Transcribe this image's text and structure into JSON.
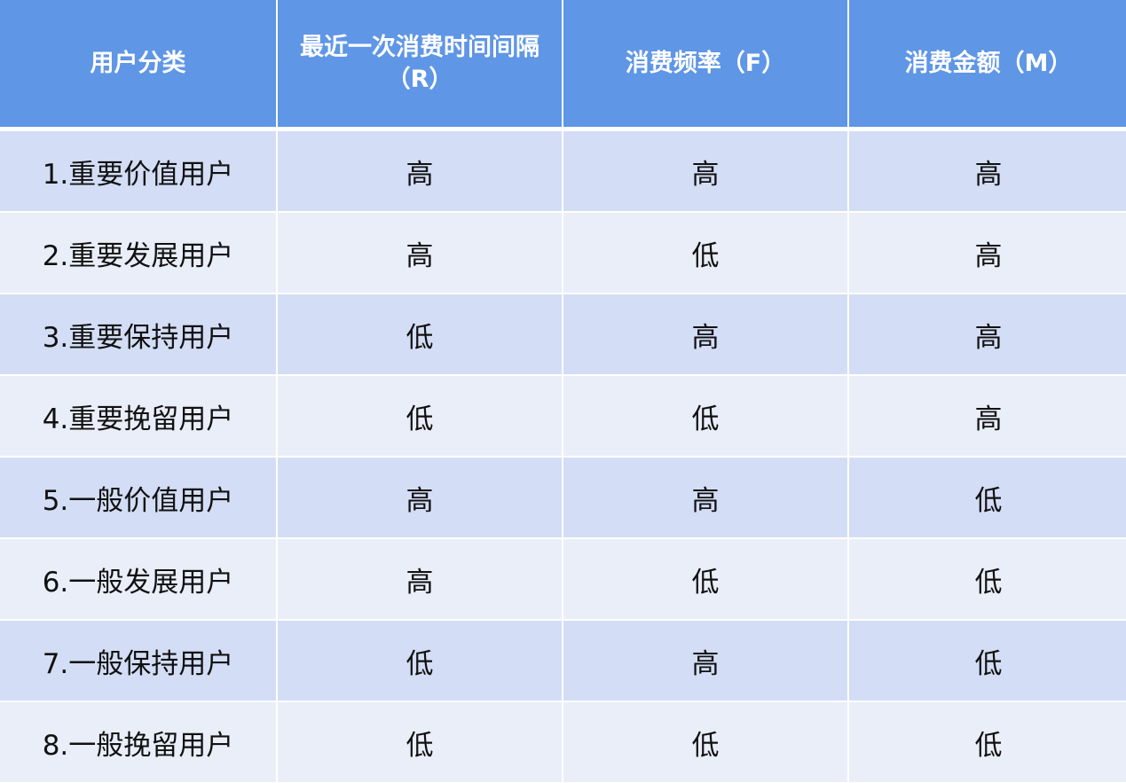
{
  "colors": {
    "header_bg": "#5f96e6",
    "row_odd_bg": "#d3ddf5",
    "row_even_bg": "#e9eef9",
    "header_text": "#ffffff",
    "body_text": "#111111"
  },
  "headers": [
    "用户分类",
    "最近一次消费时间间隔（R）",
    "消费频率（F）",
    "消费金额（M）"
  ],
  "rows": [
    [
      "1.重要价值用户",
      "高",
      "高",
      "高"
    ],
    [
      "2.重要发展用户",
      "高",
      "低",
      "高"
    ],
    [
      "3.重要保持用户",
      "低",
      "高",
      "高"
    ],
    [
      "4.重要挽留用户",
      "低",
      "低",
      "高"
    ],
    [
      "5.一般价值用户",
      "高",
      "高",
      "低"
    ],
    [
      "6.一般发展用户",
      "高",
      "低",
      "低"
    ],
    [
      "7.一般保持用户",
      "低",
      "高",
      "低"
    ],
    [
      "8.一般挽留用户",
      "低",
      "低",
      "低"
    ]
  ]
}
